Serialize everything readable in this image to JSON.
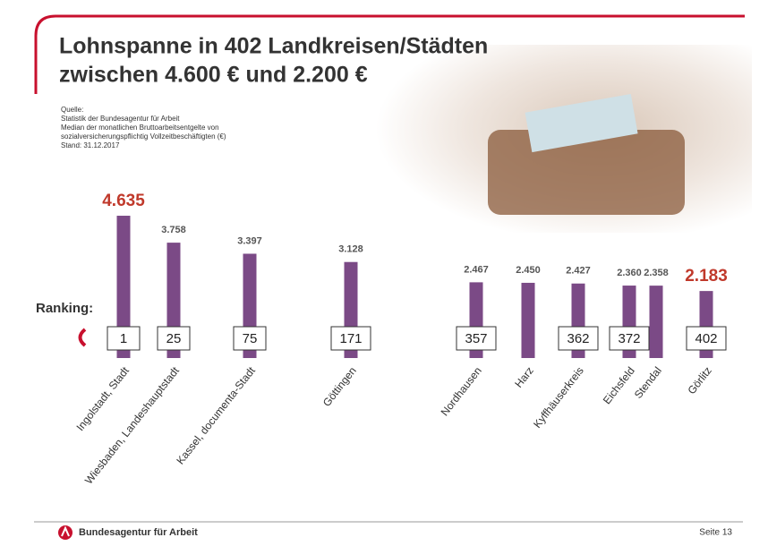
{
  "chart_data": {
    "type": "bar",
    "title": [
      "Lohnspanne in 402 Landkreisen/Städten",
      "zwischen 4.600 € und 2.200 €"
    ],
    "source": [
      "Quelle:",
      "Statistik der Bundesagentur für Arbeit",
      "Median der monatlichen Bruttoarbeitsentgelte von",
      "sozialversicherungspflichtig Vollzeitbeschäftigten (€)",
      "Stand: 31.12.2017"
    ],
    "categories": [
      "Ingolstadt, Stadt",
      "Wiesbaden, Landeshauptstadt",
      "Kassel, documenta-Stadt",
      "Göttingen",
      "Nordhausen",
      "Harz",
      "Kyffhäuserkreis",
      "Eichsfeld",
      "Stendal",
      "Görlitz"
    ],
    "values": [
      4635,
      3758,
      3397,
      3128,
      2467,
      2450,
      2427,
      2360,
      2358,
      2183
    ],
    "value_labels": [
      "4.635",
      "3.758",
      "3.397",
      "3.128",
      "2.467",
      "2.450",
      "2.427",
      "2.360",
      "2.358",
      "2.183"
    ],
    "ranking_label": "Ranking:",
    "ranking": [
      1,
      25,
      75,
      171,
      357,
      null,
      362,
      372,
      null,
      402
    ],
    "color": "#7b4a86",
    "label_color": "#555555",
    "highlight_color": "#c0392b"
  },
  "footer": {
    "brand": "Bundesagentur für Arbeit",
    "page": "Seite 13"
  }
}
